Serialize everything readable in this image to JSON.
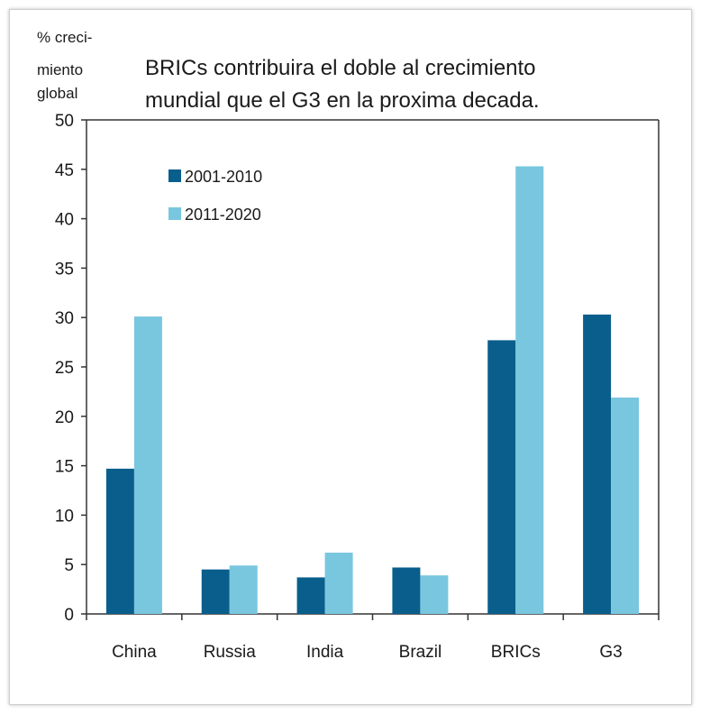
{
  "chart_data": {
    "type": "bar",
    "title_lines": [
      "BRICs contribuira el doble al crecimiento",
      "mundial que el G3 en la proxima decada."
    ],
    "ylabel_lines": [
      "% creci-",
      "miento",
      "global"
    ],
    "xlabel": "",
    "categories": [
      "China",
      "Russia",
      "India",
      "Brazil",
      "BRICs",
      "G3"
    ],
    "series": [
      {
        "name": "2001-2010",
        "color": "#0a5e8c",
        "values": [
          14.7,
          4.5,
          3.7,
          4.7,
          27.7,
          30.3
        ]
      },
      {
        "name": "2011-2020",
        "color": "#79c6df",
        "values": [
          30.1,
          4.9,
          6.2,
          3.9,
          45.3,
          21.9
        ]
      }
    ],
    "ylim": [
      0,
      50
    ],
    "yticks": [
      0,
      5,
      10,
      15,
      20,
      25,
      30,
      35,
      40,
      45,
      50
    ],
    "grid": false,
    "legend_position": "top-left"
  }
}
